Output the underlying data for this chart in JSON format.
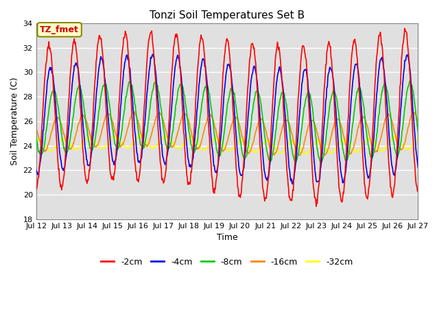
{
  "title": "Tonzi Soil Temperatures Set B",
  "xlabel": "Time",
  "ylabel": "Soil Temperature (C)",
  "ylim": [
    18,
    34
  ],
  "xlim_min": 0,
  "xlim_max": 360,
  "annotation": "TZ_fmet",
  "bg_color": "#e0e0e0",
  "colors": {
    "m2cm": "#ff0000",
    "m4cm": "#0000ee",
    "m8cm": "#00cc00",
    "m16cm": "#ff8800",
    "m32cm": "#ffff00"
  },
  "legend_labels": [
    "-2cm",
    "-4cm",
    "-8cm",
    "-16cm",
    "-32cm"
  ],
  "xtick_labels": [
    "Jul 12",
    "Jul 13",
    "Jul 14",
    "Jul 15",
    "Jul 16",
    "Jul 17",
    "Jul 18",
    "Jul 19",
    "Jul 20",
    "Jul 21",
    "Jul 22",
    "Jul 23",
    "Jul 24",
    "Jul 25",
    "Jul 26",
    "Jul 27"
  ],
  "xtick_pos": [
    0,
    24,
    48,
    72,
    96,
    120,
    144,
    168,
    192,
    216,
    240,
    264,
    288,
    312,
    336,
    360
  ],
  "ytick_pos": [
    18,
    20,
    22,
    24,
    26,
    28,
    30,
    32,
    34
  ],
  "period": 24,
  "base": 26.5,
  "amp_2cm": 5.8,
  "amp_4cm": 4.2,
  "amp_8cm": 2.6,
  "amp_16cm": 1.3,
  "amp_32cm": 0.45,
  "phase_2cm": 6.0,
  "phase_4cm": 7.5,
  "phase_8cm": 10.5,
  "phase_16cm": 14.0,
  "phase_32cm": 20.0,
  "slow_amp": 0.7,
  "slow_period": 300
}
